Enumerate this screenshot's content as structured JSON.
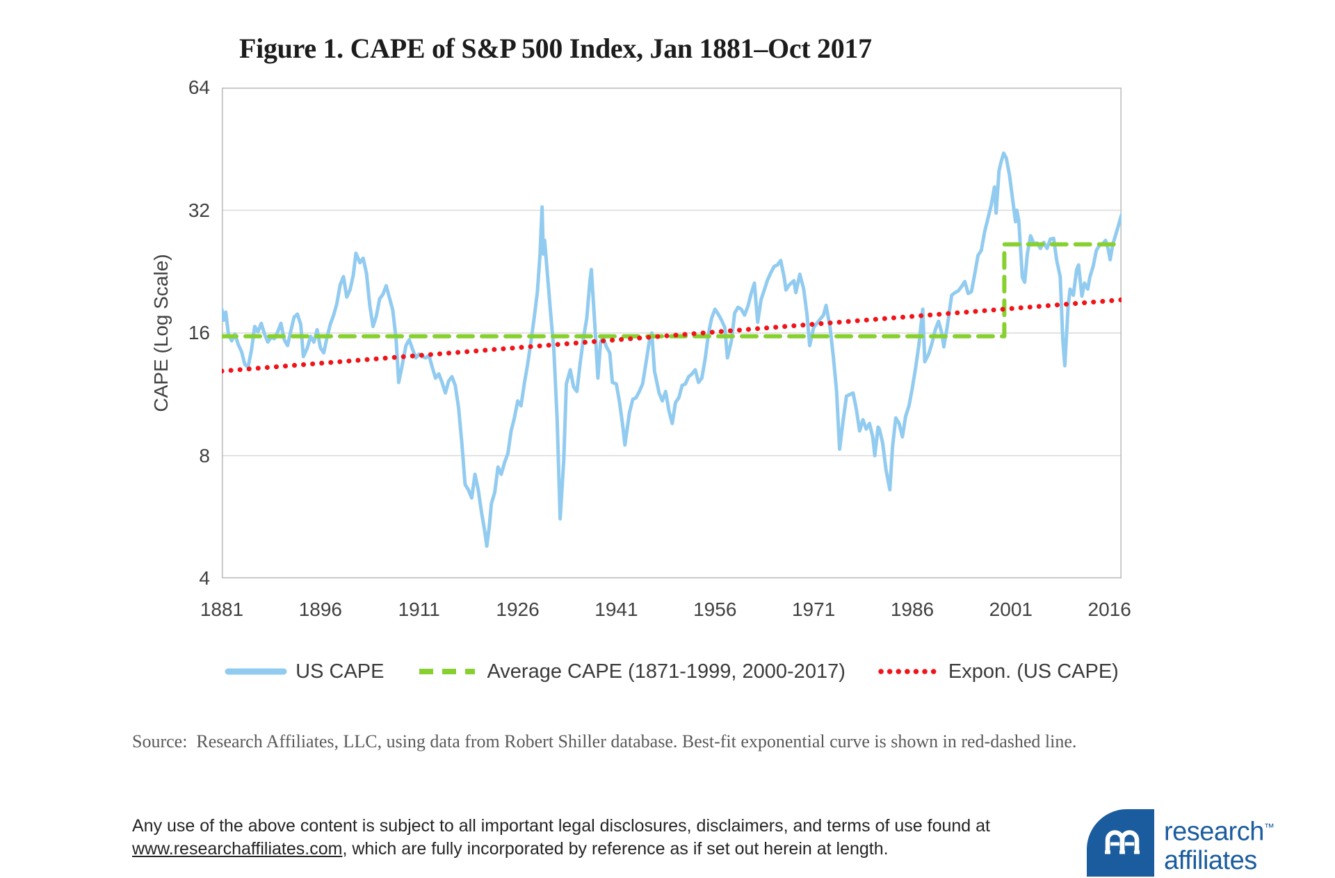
{
  "chart_data": {
    "type": "line",
    "title": "Figure 1. CAPE of S&P 500 Index, Jan 1881–Oct 2017",
    "ylabel": "CAPE (Log Scale)",
    "y_scale": "log2",
    "ylim": [
      4,
      64
    ],
    "yticks": [
      64,
      32,
      16,
      8,
      4
    ],
    "xlim": [
      1881,
      2017.83
    ],
    "xticks": [
      1881,
      1896,
      1911,
      1926,
      1941,
      1956,
      1971,
      1986,
      2001,
      2016
    ],
    "grid": "horizontal",
    "legend_position": "bottom",
    "colors": {
      "grid": "#d9d9d9",
      "border": "#bdbdbd",
      "axis_text": "#404040"
    },
    "series": [
      {
        "name": "US CAPE",
        "color": "#92cbf0",
        "style": "solid",
        "width": 5,
        "points": [
          [
            1881,
            18.3
          ],
          [
            1881.3,
            17.2
          ],
          [
            1881.6,
            18
          ],
          [
            1882,
            15.9
          ],
          [
            1882.5,
            15.3
          ],
          [
            1883,
            15.9
          ],
          [
            1883.5,
            15
          ],
          [
            1884,
            14.4
          ],
          [
            1884.5,
            13.4
          ],
          [
            1885,
            13.2
          ],
          [
            1885.5,
            14.5
          ],
          [
            1886,
            16.6
          ],
          [
            1886.5,
            16.1
          ],
          [
            1887,
            16.9
          ],
          [
            1887.5,
            15.9
          ],
          [
            1888,
            15.2
          ],
          [
            1888.5,
            15.6
          ],
          [
            1889,
            15.5
          ],
          [
            1889.5,
            16.1
          ],
          [
            1890,
            16.9
          ],
          [
            1890.5,
            15.4
          ],
          [
            1891,
            14.9
          ],
          [
            1891.5,
            16.2
          ],
          [
            1892,
            17.5
          ],
          [
            1892.5,
            17.8
          ],
          [
            1893,
            16.8
          ],
          [
            1893.4,
            14
          ],
          [
            1894,
            14.7
          ],
          [
            1894.5,
            15.7
          ],
          [
            1895,
            15.2
          ],
          [
            1895.5,
            16.3
          ],
          [
            1896,
            14.7
          ],
          [
            1896.5,
            14.3
          ],
          [
            1897,
            15.6
          ],
          [
            1897.5,
            16.8
          ],
          [
            1898,
            17.7
          ],
          [
            1898.5,
            18.9
          ],
          [
            1899,
            21
          ],
          [
            1899.5,
            22
          ],
          [
            1900,
            19.6
          ],
          [
            1900.5,
            20.4
          ],
          [
            1901,
            22.2
          ],
          [
            1901.4,
            25.1
          ],
          [
            1902,
            23.8
          ],
          [
            1902.5,
            24.4
          ],
          [
            1903,
            22.4
          ],
          [
            1903.5,
            18.7
          ],
          [
            1904,
            16.6
          ],
          [
            1904.5,
            17.6
          ],
          [
            1905,
            19.4
          ],
          [
            1905.5,
            19.9
          ],
          [
            1906,
            20.9
          ],
          [
            1906.5,
            19.5
          ],
          [
            1907,
            18.2
          ],
          [
            1907.5,
            15.5
          ],
          [
            1907.9,
            12.1
          ],
          [
            1908.3,
            13
          ],
          [
            1909,
            14.9
          ],
          [
            1909.5,
            15.4
          ],
          [
            1910,
            14.6
          ],
          [
            1910.5,
            13.9
          ],
          [
            1911,
            14.2
          ],
          [
            1911.5,
            14
          ],
          [
            1912,
            13.9
          ],
          [
            1912.5,
            14.1
          ],
          [
            1913,
            13.2
          ],
          [
            1913.5,
            12.4
          ],
          [
            1914,
            12.7
          ],
          [
            1914.5,
            12.1
          ],
          [
            1915,
            11.4
          ],
          [
            1915.5,
            12.2
          ],
          [
            1916,
            12.5
          ],
          [
            1916.5,
            11.9
          ],
          [
            1917,
            10.5
          ],
          [
            1917.5,
            8.6
          ],
          [
            1918,
            6.8
          ],
          [
            1918.5,
            6.6
          ],
          [
            1919,
            6.3
          ],
          [
            1919.5,
            7.2
          ],
          [
            1920,
            6.6
          ],
          [
            1920.5,
            5.8
          ],
          [
            1921,
            5.2
          ],
          [
            1921.3,
            4.8
          ],
          [
            1921.7,
            5.4
          ],
          [
            1922,
            6.1
          ],
          [
            1922.5,
            6.5
          ],
          [
            1923,
            7.5
          ],
          [
            1923.5,
            7.2
          ],
          [
            1924,
            7.7
          ],
          [
            1924.5,
            8.1
          ],
          [
            1925,
            9.2
          ],
          [
            1925.5,
            9.9
          ],
          [
            1926,
            10.9
          ],
          [
            1926.5,
            10.6
          ],
          [
            1927,
            12
          ],
          [
            1927.5,
            13.4
          ],
          [
            1928,
            15.2
          ],
          [
            1928.5,
            17.4
          ],
          [
            1929,
            20.2
          ],
          [
            1929.4,
            25
          ],
          [
            1929.7,
            32.6
          ],
          [
            1929.9,
            25
          ],
          [
            1930.1,
            27
          ],
          [
            1930.5,
            22.5
          ],
          [
            1931,
            18
          ],
          [
            1931.5,
            14.5
          ],
          [
            1932,
            9.8
          ],
          [
            1932.45,
            5.6
          ],
          [
            1933,
            7.8
          ],
          [
            1933.4,
            12
          ],
          [
            1934,
            13
          ],
          [
            1934.5,
            11.8
          ],
          [
            1935,
            11.5
          ],
          [
            1935.5,
            13.5
          ],
          [
            1936,
            15.5
          ],
          [
            1936.5,
            17.4
          ],
          [
            1937,
            21.6
          ],
          [
            1937.2,
            22.9
          ],
          [
            1937.8,
            16
          ],
          [
            1938.2,
            12.4
          ],
          [
            1938.6,
            15.2
          ],
          [
            1939,
            15.6
          ],
          [
            1939.5,
            14.8
          ],
          [
            1940,
            14.3
          ],
          [
            1940.4,
            12.1
          ],
          [
            1941,
            12
          ],
          [
            1941.5,
            10.8
          ],
          [
            1942,
            9.4
          ],
          [
            1942.3,
            8.5
          ],
          [
            1943,
            10.2
          ],
          [
            1943.5,
            11
          ],
          [
            1944,
            11.1
          ],
          [
            1944.5,
            11.5
          ],
          [
            1945,
            12
          ],
          [
            1945.5,
            13.5
          ],
          [
            1946,
            15.2
          ],
          [
            1946.4,
            16
          ],
          [
            1946.8,
            12.9
          ],
          [
            1947.5,
            11.4
          ],
          [
            1948,
            10.9
          ],
          [
            1948.5,
            11.5
          ],
          [
            1949,
            10.3
          ],
          [
            1949.5,
            9.6
          ],
          [
            1950,
            10.8
          ],
          [
            1950.5,
            11.1
          ],
          [
            1951,
            11.9
          ],
          [
            1951.5,
            12
          ],
          [
            1952,
            12.5
          ],
          [
            1952.5,
            12.7
          ],
          [
            1953,
            13
          ],
          [
            1953.5,
            12.1
          ],
          [
            1954,
            12.4
          ],
          [
            1954.5,
            13.8
          ],
          [
            1955,
            15.9
          ],
          [
            1955.5,
            17.4
          ],
          [
            1956,
            18.3
          ],
          [
            1956.5,
            17.8
          ],
          [
            1957,
            17.2
          ],
          [
            1957.5,
            16.5
          ],
          [
            1957.9,
            13.9
          ],
          [
            1958.5,
            15.3
          ],
          [
            1959,
            17.9
          ],
          [
            1959.5,
            18.5
          ],
          [
            1960,
            18.3
          ],
          [
            1960.5,
            17.7
          ],
          [
            1961,
            18.6
          ],
          [
            1961.5,
            20
          ],
          [
            1962,
            21.2
          ],
          [
            1962.5,
            17
          ],
          [
            1963,
            19.3
          ],
          [
            1963.5,
            20.4
          ],
          [
            1964,
            21.6
          ],
          [
            1964.5,
            22.5
          ],
          [
            1965,
            23.3
          ],
          [
            1965.5,
            23.5
          ],
          [
            1966,
            24.1
          ],
          [
            1966.5,
            22
          ],
          [
            1966.8,
            20.4
          ],
          [
            1967.3,
            21
          ],
          [
            1968,
            21.5
          ],
          [
            1968.3,
            20.1
          ],
          [
            1968.9,
            22.3
          ],
          [
            1969.5,
            20.5
          ],
          [
            1970,
            17.7
          ],
          [
            1970.4,
            14.9
          ],
          [
            1971,
            16.5
          ],
          [
            1971.5,
            16.9
          ],
          [
            1972,
            17.3
          ],
          [
            1972.5,
            17.7
          ],
          [
            1972.9,
            18.7
          ],
          [
            1973.5,
            16.5
          ],
          [
            1974,
            14
          ],
          [
            1974.5,
            11.5
          ],
          [
            1974.95,
            8.3
          ],
          [
            1975.5,
            9.8
          ],
          [
            1976,
            11.2
          ],
          [
            1976.5,
            11.3
          ],
          [
            1977,
            11.4
          ],
          [
            1977.5,
            10.4
          ],
          [
            1978,
            9.2
          ],
          [
            1978.5,
            9.8
          ],
          [
            1979,
            9.3
          ],
          [
            1979.5,
            9.6
          ],
          [
            1980,
            8.9
          ],
          [
            1980.3,
            8
          ],
          [
            1980.8,
            9.4
          ],
          [
            1981,
            9.3
          ],
          [
            1981.5,
            8.6
          ],
          [
            1982,
            7.4
          ],
          [
            1982.6,
            6.6
          ],
          [
            1983,
            8.4
          ],
          [
            1983.5,
            9.9
          ],
          [
            1984,
            9.6
          ],
          [
            1984.5,
            8.9
          ],
          [
            1985,
            10
          ],
          [
            1985.5,
            10.6
          ],
          [
            1986,
            11.7
          ],
          [
            1986.5,
            13.1
          ],
          [
            1987,
            14.9
          ],
          [
            1987.6,
            18.3
          ],
          [
            1987.9,
            13.6
          ],
          [
            1988.5,
            14.2
          ],
          [
            1989,
            15.1
          ],
          [
            1989.5,
            16.3
          ],
          [
            1990,
            17.1
          ],
          [
            1990.5,
            16
          ],
          [
            1990.8,
            14.8
          ],
          [
            1991.3,
            16.5
          ],
          [
            1992,
            19.8
          ],
          [
            1992.5,
            20.1
          ],
          [
            1993,
            20.3
          ],
          [
            1993.5,
            20.8
          ],
          [
            1994,
            21.4
          ],
          [
            1994.5,
            20
          ],
          [
            1995,
            20.2
          ],
          [
            1995.5,
            22.3
          ],
          [
            1996,
            24.8
          ],
          [
            1996.5,
            25.5
          ],
          [
            1997,
            28.3
          ],
          [
            1997.5,
            30.5
          ],
          [
            1998,
            32.9
          ],
          [
            1998.5,
            36.5
          ],
          [
            1998.75,
            31.5
          ],
          [
            1999.2,
            40
          ],
          [
            1999.5,
            42
          ],
          [
            1999.9,
            44.2
          ],
          [
            2000.3,
            43
          ],
          [
            2000.8,
            39
          ],
          [
            2001,
            36.8
          ],
          [
            2001.7,
            30
          ],
          [
            2001.9,
            32
          ],
          [
            2002.2,
            30.2
          ],
          [
            2002.75,
            21.9
          ],
          [
            2003.1,
            21.3
          ],
          [
            2003.5,
            25
          ],
          [
            2004,
            27.7
          ],
          [
            2004.5,
            26.5
          ],
          [
            2005,
            26.6
          ],
          [
            2005.5,
            25.8
          ],
          [
            2006,
            26.7
          ],
          [
            2006.5,
            25.8
          ],
          [
            2007,
            27.2
          ],
          [
            2007.5,
            27.3
          ],
          [
            2008,
            24
          ],
          [
            2008.5,
            22
          ],
          [
            2008.9,
            15.4
          ],
          [
            2009.2,
            13.3
          ],
          [
            2009.7,
            18.5
          ],
          [
            2010,
            20.5
          ],
          [
            2010.5,
            19.8
          ],
          [
            2011,
            22.9
          ],
          [
            2011.3,
            23.5
          ],
          [
            2011.8,
            19.7
          ],
          [
            2012.2,
            21.2
          ],
          [
            2012.7,
            20.5
          ],
          [
            2013,
            21.9
          ],
          [
            2013.5,
            23.3
          ],
          [
            2014,
            25.5
          ],
          [
            2014.5,
            26.3
          ],
          [
            2015,
            26.5
          ],
          [
            2015.4,
            27
          ],
          [
            2015.8,
            25.7
          ],
          [
            2016.1,
            24.2
          ],
          [
            2016.5,
            26.4
          ],
          [
            2017,
            28.1
          ],
          [
            2017.4,
            29.5
          ],
          [
            2017.83,
            31.2
          ]
        ]
      },
      {
        "name": "Average CAPE (1871-1999, 2000-2017)",
        "color": "#87d02f",
        "style": "dashed",
        "width": 6,
        "points": [
          [
            1881,
            15.7
          ],
          [
            2000,
            15.7
          ],
          [
            2000,
            26.4
          ],
          [
            2017.83,
            26.4
          ]
        ]
      },
      {
        "name": "Expon. (US CAPE)",
        "color": "#f01418",
        "style": "dotted",
        "width": 7,
        "points": [
          [
            1881,
            12.9
          ],
          [
            2017.83,
            19.3
          ]
        ]
      }
    ]
  },
  "notes": {
    "source": "Source:  Research Affiliates, LLC, using data from Robert Shiller database. Best-fit exponential curve is shown in red-dashed line.",
    "disclaimer_before": "Any use of the above content is subject to all important legal disclosures, disclaimers, and terms of use found at ",
    "disclaimer_link": "www.researchaffiliates.com",
    "disclaimer_after": ", which are fully incorporated by reference as if set out herein at length."
  },
  "logo": {
    "line1": "research",
    "tm": "™",
    "line2": "affiliates",
    "brand_color": "#1a5c9e"
  }
}
